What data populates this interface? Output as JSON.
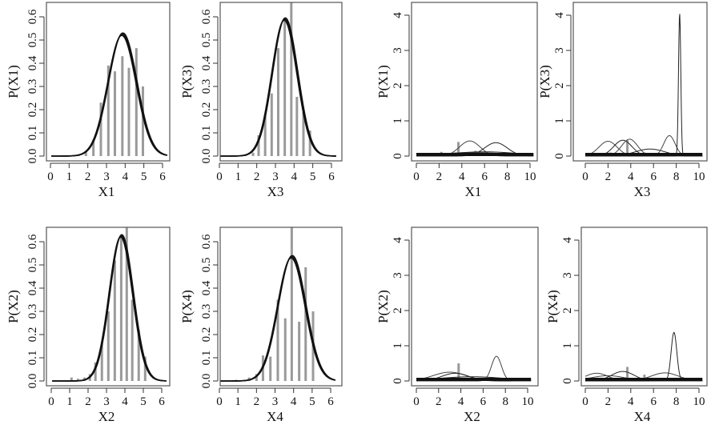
{
  "chart_data": [
    {
      "type": "line+bar",
      "panel": "top-left",
      "xlabel": "X1",
      "ylabel": "P(X1)",
      "xlim": [
        -0.2,
        6.4
      ],
      "ylim": [
        0,
        0.66
      ],
      "x_ticks": [
        "0",
        "1",
        "2",
        "3",
        "4",
        "5",
        "6"
      ],
      "y_ticks": [
        "0.0",
        "0.1",
        "0.2",
        "0.3",
        "0.4",
        "0.5",
        "0.6"
      ],
      "y_tick_values": [
        0,
        0.1,
        0.2,
        0.3,
        0.4,
        0.5,
        0.6
      ],
      "curves": [
        {
          "mean": 3.85,
          "sd": 0.76,
          "peak": 0.525
        }
      ],
      "bars": [
        [
          1.2,
          0.003
        ],
        [
          1.5,
          0.005
        ],
        [
          1.9,
          0.02
        ],
        [
          2.3,
          0.07
        ],
        [
          2.7,
          0.23
        ],
        [
          3.1,
          0.39
        ],
        [
          3.45,
          0.365
        ],
        [
          3.85,
          0.43
        ],
        [
          4.2,
          0.38
        ],
        [
          4.6,
          0.465
        ],
        [
          4.95,
          0.3
        ]
      ]
    },
    {
      "type": "line+bar",
      "panel": "top-second",
      "xlabel": "X3",
      "ylabel": "P(X3)",
      "xlim": [
        -0.2,
        6.4
      ],
      "ylim": [
        0,
        0.66
      ],
      "x_ticks": [
        "0",
        "1",
        "2",
        "3",
        "4",
        "5",
        "6"
      ],
      "y_ticks": [
        "0.0",
        "0.1",
        "0.2",
        "0.3",
        "0.4",
        "0.5",
        "0.6"
      ],
      "y_tick_values": [
        0,
        0.1,
        0.2,
        0.3,
        0.4,
        0.5,
        0.6
      ],
      "curves": [
        {
          "mean": 3.5,
          "sd": 0.676,
          "peak": 0.59
        }
      ],
      "bars": [
        [
          1.4,
          0.003
        ],
        [
          1.8,
          0.015
        ],
        [
          2.1,
          0.09
        ],
        [
          2.45,
          0.18
        ],
        [
          2.8,
          0.27
        ],
        [
          3.15,
          0.465
        ],
        [
          3.5,
          0.59
        ],
        [
          3.85,
          0.7
        ],
        [
          4.15,
          0.255
        ],
        [
          4.5,
          0.19
        ],
        [
          4.85,
          0.11
        ]
      ]
    },
    {
      "type": "line+bar",
      "panel": "top-third",
      "xlabel": "X1",
      "ylabel": "P(X1)",
      "xlim": [
        -0.4,
        10.5
      ],
      "ylim": [
        0,
        4.3
      ],
      "x_ticks": [
        "0",
        "2",
        "4",
        "6",
        "8",
        "10"
      ],
      "y_ticks": [
        "0",
        "1",
        "2",
        "3",
        "4"
      ],
      "y_tick_values": [
        0,
        1,
        2,
        3,
        4
      ],
      "curves": [
        {
          "mean": 4.7,
          "sd": 0.9,
          "peak": 0.43
        },
        {
          "mean": 7.0,
          "sd": 1.0,
          "peak": 0.38
        },
        {
          "mean": 5,
          "sd": 3,
          "peak": 0.1
        },
        {
          "mean": 6,
          "sd": 3,
          "peak": 0.12
        },
        {
          "mean": 5,
          "sd": 5,
          "peak": 0.05
        }
      ],
      "bars": [
        [
          2.2,
          0.12
        ],
        [
          3.7,
          0.4
        ],
        [
          5.2,
          0.15
        ]
      ]
    },
    {
      "type": "line+bar",
      "panel": "top-right",
      "xlabel": "X3",
      "ylabel": "P(X3)",
      "xlim": [
        -0.4,
        10.5
      ],
      "ylim": [
        0,
        4.3
      ],
      "x_ticks": [
        "0",
        "2",
        "4",
        "6",
        "8",
        "10"
      ],
      "y_ticks": [
        "0",
        "1",
        "2",
        "3",
        "4"
      ],
      "y_tick_values": [
        0,
        1,
        2,
        3,
        4
      ],
      "curves": [
        {
          "mean": 2.0,
          "sd": 0.8,
          "peak": 0.42
        },
        {
          "mean": 3.3,
          "sd": 0.8,
          "peak": 0.45
        },
        {
          "mean": 3.9,
          "sd": 0.7,
          "peak": 0.48
        },
        {
          "mean": 5.7,
          "sd": 1.3,
          "peak": 0.2
        },
        {
          "mean": 7.4,
          "sd": 0.5,
          "peak": 0.58
        },
        {
          "mean": 8.3,
          "sd": 0.1,
          "peak": 4.05
        },
        {
          "mean": 4,
          "sd": 4,
          "peak": 0.05
        }
      ],
      "bars": [
        [
          2.2,
          0.1
        ],
        [
          3.7,
          0.45
        ],
        [
          5.2,
          0.1
        ]
      ]
    },
    {
      "type": "line+bar",
      "panel": "bottom-left",
      "xlabel": "X2",
      "ylabel": "P(X2)",
      "xlim": [
        -0.2,
        6.4
      ],
      "ylim": [
        0,
        0.66
      ],
      "x_ticks": [
        "0",
        "1",
        "2",
        "3",
        "4",
        "5",
        "6"
      ],
      "y_ticks": [
        "0.0",
        "0.1",
        "0.2",
        "0.3",
        "0.4",
        "0.5",
        "0.6"
      ],
      "y_tick_values": [
        0,
        0.1,
        0.2,
        0.3,
        0.4,
        0.5,
        0.6
      ],
      "curves": [
        {
          "mean": 3.8,
          "sd": 0.638,
          "peak": 0.625
        }
      ],
      "bars": [
        [
          1.1,
          0.015
        ],
        [
          1.45,
          0.01
        ],
        [
          1.8,
          0.015
        ],
        [
          2.1,
          0.03
        ],
        [
          2.4,
          0.08
        ],
        [
          2.75,
          0.16
        ],
        [
          3.1,
          0.3
        ],
        [
          3.45,
          0.52
        ],
        [
          3.8,
          0.62
        ],
        [
          4.1,
          0.7
        ],
        [
          4.4,
          0.35
        ],
        [
          4.75,
          0.22
        ],
        [
          5.1,
          0.105
        ]
      ]
    },
    {
      "type": "line+bar",
      "panel": "bottom-second",
      "xlabel": "X4",
      "ylabel": "P(X4)",
      "xlim": [
        -0.2,
        6.4
      ],
      "ylim": [
        0,
        0.66
      ],
      "x_ticks": [
        "0",
        "1",
        "2",
        "3",
        "4",
        "5",
        "6"
      ],
      "y_ticks": [
        "0.0",
        "0.1",
        "0.2",
        "0.3",
        "0.4",
        "0.5",
        "0.6"
      ],
      "y_tick_values": [
        0,
        0.1,
        0.2,
        0.3,
        0.4,
        0.5,
        0.6
      ],
      "curves": [
        {
          "mean": 3.9,
          "sd": 0.746,
          "peak": 0.535
        }
      ],
      "bars": [
        [
          0.9,
          0.005
        ],
        [
          1.6,
          0.015
        ],
        [
          2.0,
          0.03
        ],
        [
          2.35,
          0.11
        ],
        [
          2.75,
          0.105
        ],
        [
          3.15,
          0.35
        ],
        [
          3.55,
          0.27
        ],
        [
          3.9,
          0.7
        ],
        [
          4.3,
          0.255
        ],
        [
          4.65,
          0.49
        ],
        [
          5.05,
          0.3
        ]
      ]
    },
    {
      "type": "line+bar",
      "panel": "bottom-third",
      "xlabel": "X2",
      "ylabel": "P(X2)",
      "xlim": [
        -0.4,
        10.5
      ],
      "ylim": [
        0,
        4.3
      ],
      "x_ticks": [
        "0",
        "2",
        "4",
        "6",
        "8",
        "10"
      ],
      "y_ticks": [
        "0",
        "1",
        "2",
        "3",
        "4"
      ],
      "y_tick_values": [
        0,
        1,
        2,
        3,
        4
      ],
      "curves": [
        {
          "mean": 3.0,
          "sd": 1.5,
          "peak": 0.25
        },
        {
          "mean": 3.5,
          "sd": 1.2,
          "peak": 0.22
        },
        {
          "mean": 7.2,
          "sd": 0.45,
          "peak": 0.7
        },
        {
          "mean": 5,
          "sd": 3,
          "peak": 0.12
        },
        {
          "mean": 5,
          "sd": 5,
          "peak": 0.05
        }
      ],
      "bars": [
        [
          2.3,
          0.05
        ],
        [
          3.8,
          0.5
        ]
      ]
    },
    {
      "type": "line+bar",
      "panel": "bottom-right",
      "xlabel": "X4",
      "ylabel": "P(X4)",
      "xlim": [
        -0.4,
        10.5
      ],
      "ylim": [
        0,
        4.3
      ],
      "x_ticks": [
        "0",
        "2",
        "4",
        "6",
        "8",
        "10"
      ],
      "y_ticks": [
        "0",
        "1",
        "2",
        "3",
        "4"
      ],
      "y_tick_values": [
        0,
        1,
        2,
        3,
        4
      ],
      "curves": [
        {
          "mean": 1.0,
          "sd": 1.0,
          "peak": 0.22
        },
        {
          "mean": 3.3,
          "sd": 1.0,
          "peak": 0.27
        },
        {
          "mean": 7.0,
          "sd": 1.2,
          "peak": 0.23
        },
        {
          "mean": 7.8,
          "sd": 0.25,
          "peak": 1.38
        },
        {
          "mean": 2,
          "sd": 1.5,
          "peak": 0.15
        },
        {
          "mean": 5,
          "sd": 4,
          "peak": 0.08
        }
      ],
      "bars": [
        [
          2.2,
          0.1
        ],
        [
          3.7,
          0.4
        ],
        [
          5.2,
          0.18
        ]
      ]
    }
  ]
}
